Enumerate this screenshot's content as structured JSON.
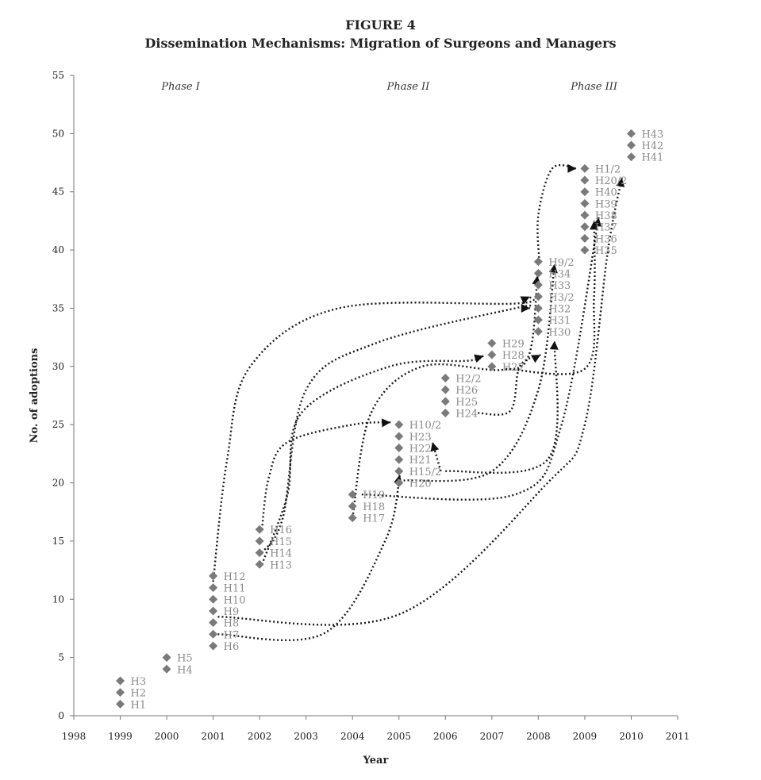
{
  "figure": {
    "number": "FIGURE 4",
    "title": "Dissemination Mechanisms: Migration of Surgeons and Managers"
  },
  "chart_data": {
    "type": "scatter",
    "xlabel": "Year",
    "ylabel": "No. of adoptions",
    "xlim": [
      1998,
      2011
    ],
    "ylim": [
      0,
      55
    ],
    "x_ticks": [
      1998,
      1999,
      2000,
      2001,
      2002,
      2003,
      2004,
      2005,
      2006,
      2007,
      2008,
      2009,
      2010,
      2011
    ],
    "y_ticks": [
      0,
      5,
      10,
      15,
      20,
      25,
      30,
      35,
      40,
      45,
      50,
      55
    ],
    "grid": false,
    "legend": "none",
    "marker": "diamond",
    "marker_color": "#7a7a7a",
    "phases": [
      {
        "label": "Phase I",
        "x": 2000.3
      },
      {
        "label": "Phase II",
        "x": 2005.2
      },
      {
        "label": "Phase III",
        "x": 2009.2
      }
    ],
    "points": [
      {
        "label": "H1",
        "x": 1999,
        "y": 1
      },
      {
        "label": "H2",
        "x": 1999,
        "y": 2
      },
      {
        "label": "H3",
        "x": 1999,
        "y": 3
      },
      {
        "label": "H4",
        "x": 2000,
        "y": 4
      },
      {
        "label": "H5",
        "x": 2000,
        "y": 5
      },
      {
        "label": "H6",
        "x": 2001,
        "y": 6
      },
      {
        "label": "H7",
        "x": 2001,
        "y": 7
      },
      {
        "label": "H8",
        "x": 2001,
        "y": 8
      },
      {
        "label": "H9",
        "x": 2001,
        "y": 9
      },
      {
        "label": "H10",
        "x": 2001,
        "y": 10
      },
      {
        "label": "H11",
        "x": 2001,
        "y": 11
      },
      {
        "label": "H12",
        "x": 2001,
        "y": 12
      },
      {
        "label": "H13",
        "x": 2002,
        "y": 13
      },
      {
        "label": "H14",
        "x": 2002,
        "y": 14
      },
      {
        "label": "H15",
        "x": 2002,
        "y": 15
      },
      {
        "label": "H16",
        "x": 2002,
        "y": 16
      },
      {
        "label": "H17",
        "x": 2004,
        "y": 17
      },
      {
        "label": "H18",
        "x": 2004,
        "y": 18
      },
      {
        "label": "H19",
        "x": 2004,
        "y": 19
      },
      {
        "label": "H20",
        "x": 2005,
        "y": 20
      },
      {
        "label": "H15/2",
        "x": 2005,
        "y": 21
      },
      {
        "label": "H21",
        "x": 2005,
        "y": 22
      },
      {
        "label": "H22",
        "x": 2005,
        "y": 23
      },
      {
        "label": "H23",
        "x": 2005,
        "y": 24
      },
      {
        "label": "H10/2",
        "x": 2005,
        "y": 25
      },
      {
        "label": "H24",
        "x": 2006,
        "y": 26
      },
      {
        "label": "H25",
        "x": 2006,
        "y": 27
      },
      {
        "label": "H26",
        "x": 2006,
        "y": 28
      },
      {
        "label": "H2/2",
        "x": 2006,
        "y": 29
      },
      {
        "label": "H27",
        "x": 2007,
        "y": 30
      },
      {
        "label": "H28",
        "x": 2007,
        "y": 31
      },
      {
        "label": "H29",
        "x": 2007,
        "y": 32
      },
      {
        "label": "H30",
        "x": 2008,
        "y": 33
      },
      {
        "label": "H31",
        "x": 2008,
        "y": 34
      },
      {
        "label": "H32",
        "x": 2008,
        "y": 35
      },
      {
        "label": "H3/2",
        "x": 2008,
        "y": 36
      },
      {
        "label": "H33",
        "x": 2008,
        "y": 37
      },
      {
        "label": "H34",
        "x": 2008,
        "y": 38
      },
      {
        "label": "H9/2",
        "x": 2008,
        "y": 39
      },
      {
        "label": "H35",
        "x": 2009,
        "y": 40
      },
      {
        "label": "H36",
        "x": 2009,
        "y": 41
      },
      {
        "label": "H37",
        "x": 2009,
        "y": 42
      },
      {
        "label": "H38",
        "x": 2009,
        "y": 43
      },
      {
        "label": "H39",
        "x": 2009,
        "y": 44
      },
      {
        "label": "H40",
        "x": 2009,
        "y": 45
      },
      {
        "label": "H20/2",
        "x": 2009,
        "y": 46
      },
      {
        "label": "H1/2",
        "x": 2009,
        "y": 47
      },
      {
        "label": "H41",
        "x": 2010,
        "y": 48
      },
      {
        "label": "H42",
        "x": 2010,
        "y": 49
      },
      {
        "label": "H43",
        "x": 2010,
        "y": 50
      }
    ],
    "migrations": [
      {
        "from": "H12",
        "to": "H32",
        "path": [
          [
            2001,
            11.5
          ],
          [
            2001.3,
            22
          ],
          [
            2001.8,
            30
          ],
          [
            2003.7,
            35
          ],
          [
            2007.5,
            35.4
          ],
          [
            2007.82,
            36
          ]
        ]
      },
      {
        "from": "H14",
        "to": "H3/2",
        "path": [
          [
            2002.05,
            14
          ],
          [
            2002.5,
            17
          ],
          [
            2003,
            28
          ],
          [
            2004.5,
            32
          ],
          [
            2007.5,
            35
          ],
          [
            2007.82,
            35
          ]
        ]
      },
      {
        "from": "H16",
        "to": "H10/2",
        "path": [
          [
            2002.05,
            16
          ],
          [
            2002.2,
            20.5
          ],
          [
            2002.6,
            23.5
          ],
          [
            2004,
            25
          ],
          [
            2004.82,
            25.2
          ]
        ]
      },
      {
        "from": "H13",
        "to": "H28",
        "path": [
          [
            2002.05,
            13
          ],
          [
            2002.6,
            19
          ],
          [
            2002.9,
            26
          ],
          [
            2004.8,
            30
          ],
          [
            2006.5,
            30.5
          ],
          [
            2006.82,
            30.9
          ]
        ]
      },
      {
        "from": "H17",
        "to": "H33",
        "path": [
          [
            2004,
            17
          ],
          [
            2004.4,
            26
          ],
          [
            2005.5,
            30
          ],
          [
            2007.2,
            29.7
          ],
          [
            2007.8,
            31
          ],
          [
            2007.98,
            37.8
          ]
        ]
      },
      {
        "from": "H24",
        "to": "H34",
        "path": [
          [
            2006.7,
            26
          ],
          [
            2007.4,
            26.2
          ],
          [
            2007.6,
            30
          ],
          [
            2008.05,
            31
          ]
        ]
      },
      {
        "from": "H7",
        "to": "H20",
        "path": [
          [
            2001.1,
            7
          ],
          [
            2003.4,
            7.1
          ],
          [
            2004.7,
            15
          ],
          [
            2005.02,
            20.7
          ]
        ]
      },
      {
        "from": "H9",
        "to": "H41",
        "path": [
          [
            2001.1,
            8.5
          ],
          [
            2005,
            8.7
          ],
          [
            2008.2,
            20
          ],
          [
            2009,
            25
          ],
          [
            2009.5,
            40
          ],
          [
            2009.8,
            46.2
          ]
        ]
      },
      {
        "from": "H15/2",
        "to": "H22",
        "path": [
          [
            2005.9,
            21
          ],
          [
            2005.72,
            23.5
          ]
        ]
      },
      {
        "from": "H15/2",
        "to": "H30",
        "path": [
          [
            2006,
            21
          ],
          [
            2008.2,
            22
          ],
          [
            2008.35,
            32.2
          ]
        ]
      },
      {
        "from": "H19",
        "to": "H37",
        "path": [
          [
            2004.2,
            19
          ],
          [
            2007.5,
            19
          ],
          [
            2008.5,
            25
          ],
          [
            2009.3,
            42.8
          ]
        ]
      },
      {
        "from": "H27",
        "to": "H1/2",
        "path": [
          [
            2007.3,
            29.8
          ],
          [
            2009,
            29.8
          ],
          [
            2009.2,
            36
          ],
          [
            2009.2,
            42.5
          ]
        ]
      },
      {
        "from": "H20",
        "to": "H33",
        "path": [
          [
            2005.1,
            20.2
          ],
          [
            2007,
            21
          ],
          [
            2008,
            28
          ],
          [
            2008.35,
            38.8
          ]
        ]
      },
      {
        "from": "H9/2",
        "to": "H1/2",
        "path": [
          [
            2008.02,
            39
          ],
          [
            2008,
            43
          ],
          [
            2008.3,
            47
          ],
          [
            2008.82,
            47
          ]
        ]
      }
    ]
  }
}
